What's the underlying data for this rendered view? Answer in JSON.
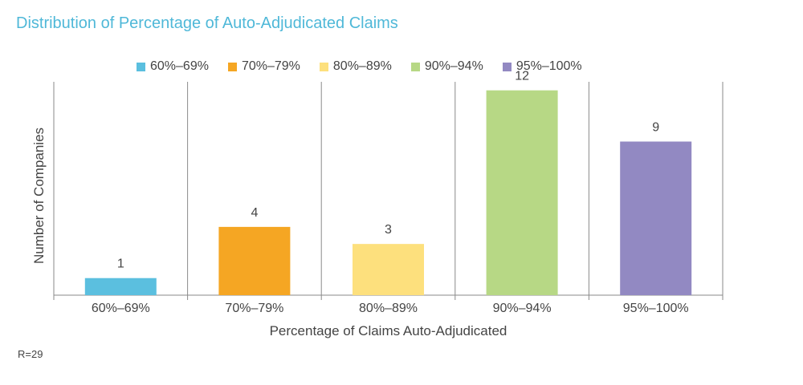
{
  "chart_data": {
    "type": "bar",
    "title": "Distribution of Percentage of Auto-Adjudicated Claims",
    "xlabel": "Percentage of Claims Auto-Adjudicated",
    "ylabel": "Number of Companies",
    "categories": [
      "60%–69%",
      "70%–79%",
      "80%–89%",
      "90%–94%",
      "95%–100%"
    ],
    "values": [
      1,
      4,
      3,
      12,
      9
    ],
    "colors": [
      "#5bbfdf",
      "#f5a623",
      "#fde07d",
      "#b7d885",
      "#9289c2"
    ],
    "legend": [
      "60%–69%",
      "70%–79%",
      "80%–89%",
      "90%–94%",
      "95%–100%"
    ],
    "legend_position": "top",
    "ylim": [
      0,
      12.5
    ],
    "grid": false,
    "data_labels": true
  },
  "footnote": "R=29"
}
